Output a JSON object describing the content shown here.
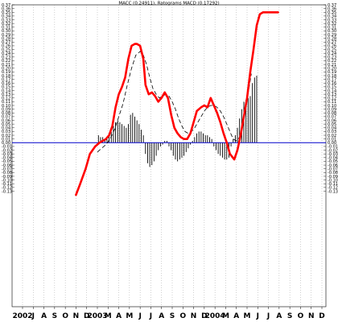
{
  "chart_data": {
    "type": "line",
    "title": "MACC (0.24911), Ratograms MACD (0.17292)",
    "ylim": [
      -0.44,
      0.37
    ],
    "y_ticks": [
      0.37,
      0.36,
      0.35,
      0.34,
      0.33,
      0.32,
      0.31,
      0.3,
      0.29,
      0.28,
      0.27,
      0.26,
      0.25,
      0.24,
      0.23,
      0.22,
      0.21,
      0.2,
      0.19,
      0.18,
      0.17,
      0.16,
      0.15,
      0.14,
      0.13,
      0.12,
      0.11,
      0.1,
      0.09,
      0.08,
      0.07,
      0.06,
      0.05,
      0.04,
      0.03,
      0.02,
      0.01,
      0.0,
      -0.01,
      -0.02,
      -0.03,
      -0.04,
      -0.05,
      -0.06,
      -0.07,
      -0.08,
      -0.09,
      -0.1,
      -0.11,
      -0.12,
      -0.13
    ],
    "y_tick_labels_left": [
      "0.37",
      "0.36",
      "0.35",
      "0.34",
      "0.33",
      "0.32",
      "0.31",
      "0.30",
      "0.29",
      "0.28",
      "0.27",
      "0.26",
      "0.25",
      "0.24",
      "0.23",
      "0.22",
      "0.21",
      "0.20",
      "0.19",
      "0.18",
      "0.17",
      "0.16",
      "0.15",
      "0.14",
      "0.13",
      "0.12",
      "0.11",
      "0.10",
      "0.09",
      "0.08",
      "0.07",
      "0.06",
      "0.05",
      "0.04",
      "0.03",
      "0.02",
      "0.01",
      "0.00",
      "-0.01",
      "-0.02",
      "-0.03",
      "-0.04",
      "-0.05",
      "-0.06",
      "-0.07",
      "-0.08",
      "-0.09",
      "-0.10",
      "-0.11",
      "-0.12",
      "-0.13"
    ],
    "y_tick_labels_right": [
      "0.37",
      "0.36",
      "0.35",
      "0.34",
      "0.33",
      "0.32",
      "0.31",
      "0.30",
      "0.29",
      "0.28",
      "0.27",
      "0.26",
      "0.25",
      "0.24",
      "0.23",
      "0.22",
      "0.21",
      "0.20",
      "0.19",
      "0.18",
      "0.17",
      "0.16",
      "0.15",
      "0.14",
      "0.13",
      "0.12",
      "0.11",
      "0.10",
      "0.09",
      "0.08",
      "0.07",
      "0.06",
      "0.05",
      "0.04",
      "0.03",
      "0.02",
      "0.01",
      "0.00",
      "-0.01",
      "-0.02",
      "-0.03",
      "-0.04",
      "-0.05",
      "-0.06",
      "-0.07",
      "-0.08",
      "-0.09",
      "-0.10",
      "-0.11",
      "-0.12",
      "-0.13"
    ],
    "x_tick_labels": [
      "2002",
      "J",
      "A",
      "S",
      "O",
      "N",
      "D",
      "2003",
      "M",
      "A",
      "M",
      "J",
      "J",
      "A",
      "S",
      "O",
      "N",
      "D",
      "2004",
      "M",
      "A",
      "M",
      "J",
      "J",
      "A",
      "S",
      "O",
      "N",
      "D"
    ],
    "x_range": [
      0,
      28
    ],
    "zero_line": 0,
    "grid": "vertical dotted",
    "colors": {
      "macd": "#ff0000",
      "signal": "#000000",
      "histogram": "#000000",
      "zero_line": "#0000cc"
    },
    "series": [
      {
        "type": "line",
        "x": [
          5.0,
          5.4,
          5.9,
          6.3,
          6.8,
          7.2,
          7.5,
          7.8,
          8.1,
          8.4,
          8.7,
          9.0,
          9.3,
          9.6,
          9.9,
          10.2,
          10.5,
          10.7,
          11.0,
          11.3,
          11.5,
          11.8,
          12.1,
          12.4,
          12.7,
          13.0,
          13.3,
          13.6,
          13.9,
          14.2,
          14.5,
          14.8,
          15.1,
          15.4,
          15.7,
          16.0,
          16.3,
          16.7,
          17.0,
          17.3,
          17.6,
          17.9,
          18.2,
          18.5,
          18.8,
          19.1,
          19.4,
          19.8,
          20.1,
          20.4,
          20.7,
          21.0,
          21.3,
          21.6,
          21.9,
          22.2,
          22.5,
          22.8,
          23.1,
          23.4,
          23.7,
          23.9
        ],
        "values": [
          -0.14,
          -0.11,
          -0.07,
          -0.03,
          -0.01,
          0.0,
          0.005,
          0.01,
          0.02,
          0.045,
          0.095,
          0.13,
          0.15,
          0.175,
          0.225,
          0.26,
          0.265,
          0.265,
          0.26,
          0.225,
          0.155,
          0.13,
          0.135,
          0.125,
          0.11,
          0.12,
          0.135,
          0.12,
          0.075,
          0.04,
          0.025,
          0.015,
          0.01,
          0.01,
          0.025,
          0.055,
          0.085,
          0.095,
          0.1,
          0.095,
          0.12,
          0.1,
          0.08,
          0.055,
          0.025,
          0.0,
          -0.03,
          -0.045,
          -0.02,
          0.02,
          0.07,
          0.12,
          0.19,
          0.25,
          0.315,
          0.345,
          0.35,
          0.35,
          0.35,
          0.35,
          0.35,
          0.35
        ]
      },
      {
        "type": "line",
        "x": [
          7.0,
          7.4,
          7.8,
          8.2,
          8.6,
          9.0,
          9.4,
          9.8,
          10.2,
          10.6,
          11.0,
          11.3,
          11.6,
          11.9,
          12.2,
          12.5,
          12.8,
          13.1,
          13.4,
          13.7,
          14.0,
          14.3,
          14.6,
          14.9,
          15.2,
          15.5,
          15.8,
          16.1,
          16.4,
          16.7,
          17.0,
          17.3,
          17.6,
          17.9,
          18.2,
          18.5,
          18.8,
          19.1,
          19.4,
          19.7,
          20.0,
          20.3,
          20.6,
          20.9,
          21.2,
          21.4
        ],
        "values": [
          -0.025,
          -0.015,
          -0.005,
          0.01,
          0.035,
          0.07,
          0.105,
          0.155,
          0.2,
          0.235,
          0.245,
          0.235,
          0.21,
          0.175,
          0.145,
          0.13,
          0.12,
          0.125,
          0.13,
          0.125,
          0.11,
          0.09,
          0.065,
          0.045,
          0.03,
          0.025,
          0.03,
          0.04,
          0.055,
          0.07,
          0.085,
          0.095,
          0.1,
          0.1,
          0.095,
          0.085,
          0.07,
          0.05,
          0.03,
          0.01,
          0.005,
          0.015,
          0.05,
          0.1,
          0.15,
          0.185
        ]
      },
      {
        "type": "bar",
        "x": [
          7.1,
          7.3,
          7.5,
          7.7,
          7.9,
          8.1,
          8.3,
          8.5,
          8.7,
          8.9,
          9.1,
          9.3,
          9.5,
          9.7,
          9.9,
          10.1,
          10.3,
          10.5,
          10.7,
          10.9,
          11.1,
          11.3,
          11.5,
          11.7,
          11.9,
          12.1,
          12.3,
          12.5,
          12.7,
          12.9,
          13.1,
          13.3,
          13.5,
          13.7,
          13.9,
          14.1,
          14.3,
          14.5,
          14.7,
          14.9,
          15.1,
          15.3,
          15.5,
          15.7,
          15.9,
          16.1,
          16.3,
          16.5,
          16.7,
          16.9,
          17.1,
          17.3,
          17.5,
          17.7,
          17.9,
          18.1,
          18.3,
          18.5,
          18.7,
          18.9,
          19.1,
          19.3,
          19.5,
          19.7,
          19.9,
          20.1,
          20.3,
          20.5,
          20.7,
          20.9,
          21.1,
          21.3,
          21.5,
          21.7,
          21.9
        ],
        "values": [
          0.02,
          0.015,
          0.015,
          0.01,
          0.01,
          0.02,
          0.03,
          0.045,
          0.055,
          0.06,
          0.055,
          0.05,
          0.045,
          0.04,
          0.05,
          0.075,
          0.08,
          0.07,
          0.06,
          0.05,
          0.035,
          0.02,
          -0.03,
          -0.055,
          -0.065,
          -0.06,
          -0.05,
          -0.035,
          -0.02,
          -0.01,
          -0.005,
          0.005,
          0.005,
          -0.01,
          -0.02,
          -0.035,
          -0.045,
          -0.05,
          -0.045,
          -0.04,
          -0.035,
          -0.025,
          -0.015,
          -0.005,
          0.005,
          0.015,
          0.025,
          0.03,
          0.03,
          0.025,
          0.02,
          0.02,
          0.015,
          0.01,
          -0.01,
          -0.02,
          -0.03,
          -0.035,
          -0.04,
          -0.045,
          -0.045,
          -0.04,
          -0.01,
          0.01,
          0.02,
          0.04,
          0.065,
          0.09,
          0.11,
          0.115,
          0.12,
          0.125,
          0.16,
          0.175,
          0.18
        ]
      }
    ]
  }
}
